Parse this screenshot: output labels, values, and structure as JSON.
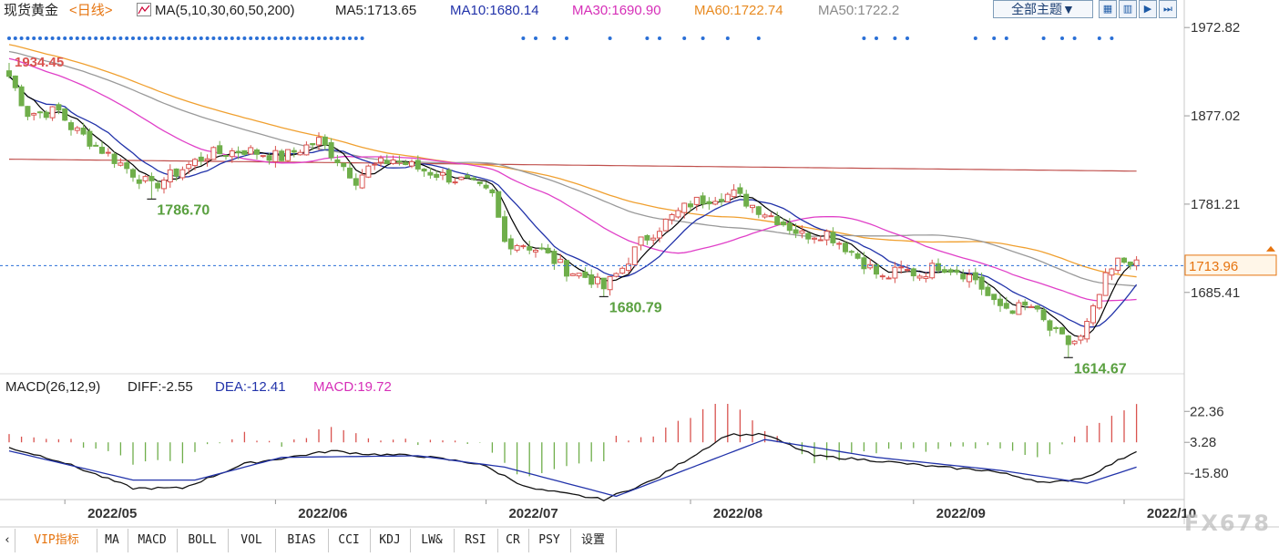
{
  "header": {
    "symbol": "现货黄金",
    "period": "<日线>",
    "ma_label": "MA(5,10,30,60,50,200)",
    "ma5": "MA5:1713.65",
    "ma10": "MA10:1680.14",
    "ma30": "MA30:1690.90",
    "ma60": "MA60:1722.74",
    "ma50": "MA50:1722.2",
    "theme_button": "全部主题▼"
  },
  "macd_header": {
    "label": "MACD(26,12,9)",
    "diff": "DIFF:-2.55",
    "dea": "DEA:-12.41",
    "macd": "MACD:19.72"
  },
  "tabs": [
    "VIP指标",
    "MA",
    "MACD",
    "BOLL",
    "VOL",
    "BIAS",
    "CCI",
    "KDJ",
    "LW&",
    "RSI",
    "CR",
    "PSY",
    "设置"
  ],
  "watermark": "FX678",
  "colors": {
    "up": "#d9534f",
    "down": "#6fae4a",
    "ma5": "#000000",
    "ma10": "#2233aa",
    "ma30": "#e040c8",
    "ma60": "#f0a030",
    "ma50": "#9a9a9a",
    "ma200": "#c0504d",
    "label_green": "#5aa040",
    "label_red": "#d9534f",
    "price_tag": "#e6740f"
  },
  "chart_data": [
    {
      "type": "candlestick",
      "title": "",
      "y_ticks": [
        "1972.82",
        "1877.02",
        "1781.21",
        "1685.41"
      ],
      "ylim": [
        1610,
        1975
      ],
      "x_ticks": [
        "2022/05",
        "2022/06",
        "2022/07",
        "2022/08",
        "2022/09",
        "2022/10"
      ],
      "current_price": "1713.96",
      "annotations": [
        {
          "text": "1934.45",
          "type": "high"
        },
        {
          "text": "1786.70",
          "type": "low"
        },
        {
          "text": "1680.79",
          "type": "low"
        },
        {
          "text": "1614.67",
          "type": "low"
        }
      ],
      "anchors": [
        {
          "i": 0,
          "p": 1920
        },
        {
          "i": 3,
          "p": 1880
        },
        {
          "i": 8,
          "p": 1882
        },
        {
          "i": 10,
          "p": 1865
        },
        {
          "i": 14,
          "p": 1845
        },
        {
          "i": 20,
          "p": 1815
        },
        {
          "i": 23,
          "p": 1800
        },
        {
          "i": 26,
          "p": 1812
        },
        {
          "i": 32,
          "p": 1835
        },
        {
          "i": 38,
          "p": 1840
        },
        {
          "i": 44,
          "p": 1832
        },
        {
          "i": 50,
          "p": 1850
        },
        {
          "i": 53,
          "p": 1830
        },
        {
          "i": 56,
          "p": 1808
        },
        {
          "i": 58,
          "p": 1820
        },
        {
          "i": 62,
          "p": 1830
        },
        {
          "i": 66,
          "p": 1820
        },
        {
          "i": 70,
          "p": 1812
        },
        {
          "i": 74,
          "p": 1805
        },
        {
          "i": 78,
          "p": 1790
        },
        {
          "i": 80,
          "p": 1740
        },
        {
          "i": 83,
          "p": 1738
        },
        {
          "i": 86,
          "p": 1730
        },
        {
          "i": 90,
          "p": 1710
        },
        {
          "i": 94,
          "p": 1700
        },
        {
          "i": 96,
          "p": 1690
        },
        {
          "i": 99,
          "p": 1712
        },
        {
          "i": 102,
          "p": 1740
        },
        {
          "i": 106,
          "p": 1762
        },
        {
          "i": 110,
          "p": 1782
        },
        {
          "i": 114,
          "p": 1790
        },
        {
          "i": 117,
          "p": 1792
        },
        {
          "i": 120,
          "p": 1780
        },
        {
          "i": 124,
          "p": 1765
        },
        {
          "i": 128,
          "p": 1748
        },
        {
          "i": 132,
          "p": 1750
        },
        {
          "i": 135,
          "p": 1735
        },
        {
          "i": 138,
          "p": 1718
        },
        {
          "i": 141,
          "p": 1700
        },
        {
          "i": 144,
          "p": 1710
        },
        {
          "i": 147,
          "p": 1705
        },
        {
          "i": 150,
          "p": 1715
        },
        {
          "i": 153,
          "p": 1710
        },
        {
          "i": 156,
          "p": 1700
        },
        {
          "i": 159,
          "p": 1672
        },
        {
          "i": 162,
          "p": 1668
        },
        {
          "i": 165,
          "p": 1670
        },
        {
          "i": 168,
          "p": 1645
        },
        {
          "i": 171,
          "p": 1630
        },
        {
          "i": 173,
          "p": 1635
        },
        {
          "i": 175,
          "p": 1665
        },
        {
          "i": 177,
          "p": 1700
        },
        {
          "i": 179,
          "p": 1718
        },
        {
          "i": 181,
          "p": 1720
        },
        {
          "i": 182,
          "p": 1714
        }
      ],
      "extremes": [
        {
          "i": 0,
          "high": 1934.45
        },
        {
          "i": 23,
          "low": 1786.7
        },
        {
          "i": 96,
          "low": 1680.79
        },
        {
          "i": 171,
          "low": 1614.67
        }
      ],
      "ma200_line": {
        "start": 1830,
        "end": 1817
      },
      "series": [
        "MA5",
        "MA10",
        "MA30",
        "MA60",
        "MA50"
      ]
    },
    {
      "type": "macd",
      "y_ticks": [
        "22.36",
        "3.28",
        "-15.80"
      ],
      "ylim": [
        -32,
        27
      ],
      "anchors": [
        {
          "i": 0,
          "d": 0
        },
        {
          "i": 8,
          "d": -8
        },
        {
          "i": 20,
          "d": -25
        },
        {
          "i": 28,
          "d": -25
        },
        {
          "i": 38,
          "d": -10
        },
        {
          "i": 52,
          "d": -2
        },
        {
          "i": 58,
          "d": -4
        },
        {
          "i": 66,
          "d": -5
        },
        {
          "i": 76,
          "d": -10
        },
        {
          "i": 84,
          "d": -25
        },
        {
          "i": 96,
          "d": -32
        },
        {
          "i": 104,
          "d": -20
        },
        {
          "i": 116,
          "d": 8
        },
        {
          "i": 122,
          "d": 8
        },
        {
          "i": 130,
          "d": -5
        },
        {
          "i": 140,
          "d": -8
        },
        {
          "i": 150,
          "d": -12
        },
        {
          "i": 158,
          "d": -14
        },
        {
          "i": 168,
          "d": -22
        },
        {
          "i": 174,
          "d": -18
        },
        {
          "i": 182,
          "d": -2
        }
      ],
      "dea_anchors": [
        {
          "i": 0,
          "d": -2
        },
        {
          "i": 20,
          "d": -20
        },
        {
          "i": 30,
          "d": -20
        },
        {
          "i": 44,
          "d": -6
        },
        {
          "i": 66,
          "d": -5
        },
        {
          "i": 80,
          "d": -12
        },
        {
          "i": 98,
          "d": -30
        },
        {
          "i": 122,
          "d": 5
        },
        {
          "i": 140,
          "d": -6
        },
        {
          "i": 160,
          "d": -14
        },
        {
          "i": 174,
          "d": -22
        },
        {
          "i": 182,
          "d": -12
        }
      ]
    }
  ]
}
